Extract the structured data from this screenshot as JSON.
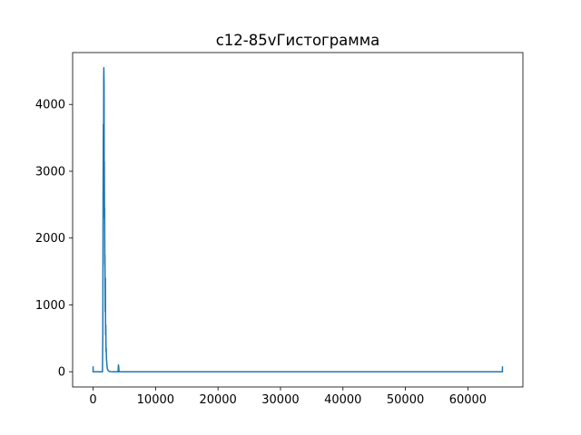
{
  "chart_data": {
    "type": "line",
    "title": "c12-85vГистограмма",
    "xlabel": "",
    "ylabel": "",
    "xlim": [
      -3277,
      68812
    ],
    "ylim": [
      -228,
      4776
    ],
    "grid": false,
    "legend": "none",
    "x_ticks": [
      0,
      10000,
      20000,
      30000,
      40000,
      50000,
      60000
    ],
    "y_ticks": [
      0,
      1000,
      2000,
      3000,
      4000
    ],
    "x_tick_labels": [
      "0",
      "10000",
      "20000",
      "30000",
      "40000",
      "50000",
      "60000"
    ],
    "y_tick_labels": [
      "0",
      "1000",
      "2000",
      "3000",
      "4000"
    ],
    "series": [
      {
        "color": "#1f77b4",
        "x": [
          0,
          0,
          200,
          1500,
          1560,
          1600,
          1640,
          1680,
          1700,
          1720,
          1760,
          1780,
          1800,
          1830,
          1850,
          1880,
          1900,
          1940,
          1970,
          2000,
          2040,
          2070,
          2100,
          2140,
          2180,
          2220,
          2260,
          2300,
          2360,
          2400,
          2450,
          2500,
          2600,
          3000,
          4000,
          4050,
          4100,
          4150,
          4300,
          10000,
          30000,
          50000,
          65400,
          65500,
          65535,
          65535
        ],
        "y": [
          80,
          0,
          0,
          0,
          600,
          2600,
          3700,
          3100,
          4400,
          4550,
          4300,
          3000,
          3150,
          2300,
          2450,
          1600,
          1750,
          900,
          1400,
          550,
          700,
          300,
          350,
          200,
          150,
          100,
          60,
          40,
          30,
          20,
          15,
          10,
          5,
          0,
          0,
          100,
          80,
          0,
          0,
          0,
          0,
          0,
          0,
          0,
          0,
          80
        ]
      }
    ]
  }
}
